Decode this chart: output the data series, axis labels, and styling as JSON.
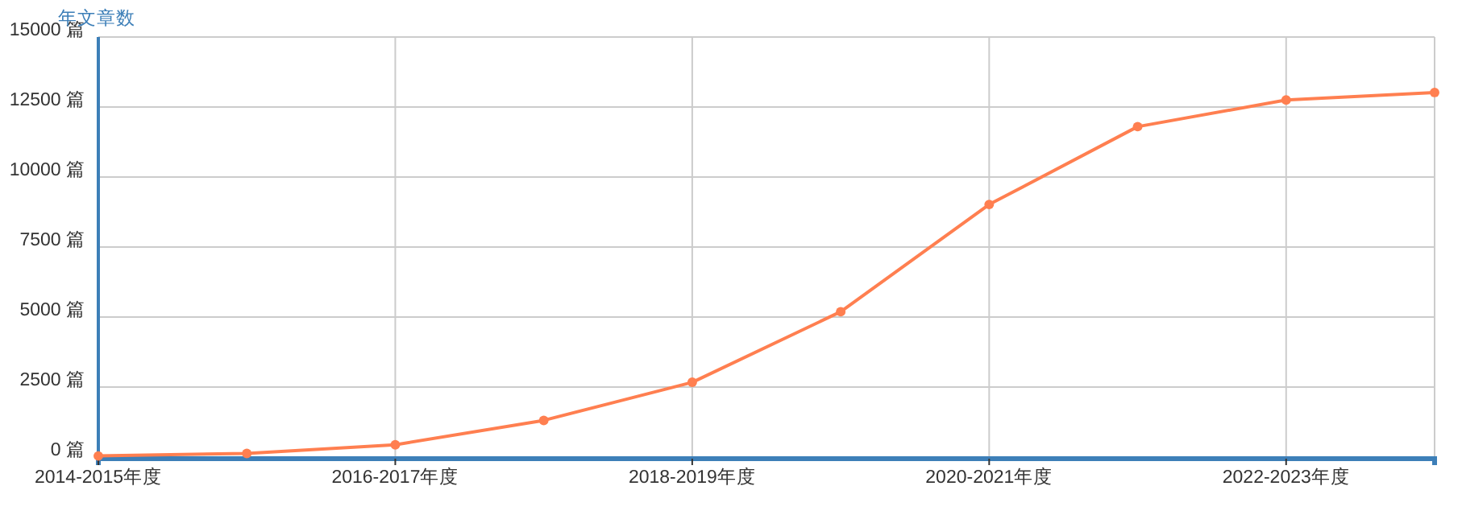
{
  "chart_data": {
    "type": "line",
    "ylabel": "年文章数",
    "categories": [
      "2014-2015年度",
      null,
      "2016-2017年度",
      null,
      "2018-2019年度",
      null,
      "2020-2021年度",
      null,
      "2022-2023年度",
      null
    ],
    "series": [
      {
        "color": "#ff7f50",
        "values": [
          40,
          130,
          440,
          1310,
          2670,
          5190,
          9020,
          11800,
          12750,
          13020
        ]
      }
    ],
    "ylim": [
      0,
      15000
    ],
    "yticks": [
      {
        "value": 0,
        "label": "0 篇"
      },
      {
        "value": 2500,
        "label": "2500 篇"
      },
      {
        "value": 5000,
        "label": "5000 篇"
      },
      {
        "value": 7500,
        "label": "7500 篇"
      },
      {
        "value": 10000,
        "label": "10000 篇"
      },
      {
        "value": 12500,
        "label": "12500 篇"
      },
      {
        "value": 15000,
        "label": "15000 篇"
      }
    ],
    "grid": true,
    "marker": "circle",
    "line_style": "solid"
  }
}
